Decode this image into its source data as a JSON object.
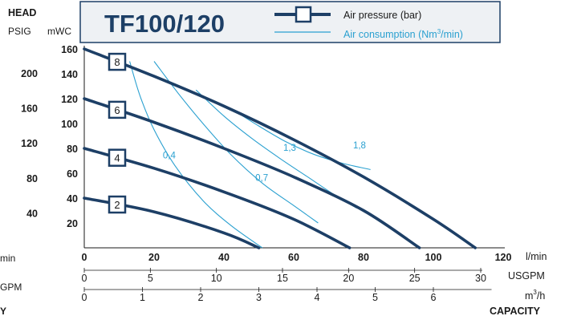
{
  "chart_data": {
    "type": "line",
    "title": "TF100/120",
    "y_title": "HEAD",
    "y_unit_psig": "PSIG",
    "y_unit_mwc": "mWC",
    "x_title": "CAPACITY",
    "unit_lmin": "l/min",
    "unit_usgpm": "USGPM",
    "unit_m3h_base": "m",
    "unit_m3h_sup": "3",
    "unit_m3h_tail": "/h",
    "legend_pressure": "Air pressure (bar)",
    "legend_consumption_base": "Air consumption (Nm",
    "legend_consumption_sup": "3",
    "legend_consumption_tail": "/min)",
    "left_fragments": [
      "min",
      "GPM",
      "Y"
    ],
    "xlim_lmin": [
      0,
      120
    ],
    "ylim_mwc": [
      0,
      160
    ],
    "lmin_ticks": [
      "0",
      "20",
      "40",
      "60",
      "80",
      "100",
      "120"
    ],
    "usgpm_ticks": [
      "0",
      "5",
      "10",
      "15",
      "20",
      "25",
      "30"
    ],
    "m3h_ticks": [
      "0",
      "1",
      "2",
      "3",
      "4",
      "5",
      "6"
    ],
    "mwc_ticks": [
      "20",
      "40",
      "60",
      "80",
      "100",
      "120",
      "140",
      "160"
    ],
    "psig_ticks": [
      "40",
      "80",
      "120",
      "160",
      "200"
    ],
    "pressure_curves": [
      {
        "name": "8",
        "x": [
          0,
          20,
          40,
          60,
          80,
          100,
          112
        ],
        "y": [
          160,
          138,
          114,
          87,
          57,
          23,
          0
        ]
      },
      {
        "name": "6",
        "x": [
          0,
          20,
          40,
          60,
          80,
          96
        ],
        "y": [
          120,
          101,
          80,
          57,
          30,
          0
        ]
      },
      {
        "name": "4",
        "x": [
          0,
          20,
          40,
          60,
          76
        ],
        "y": [
          80,
          64,
          45,
          23,
          0
        ]
      },
      {
        "name": "2",
        "x": [
          0,
          20,
          40,
          50
        ],
        "y": [
          40,
          29,
          12,
          0
        ]
      }
    ],
    "consumption_curves": [
      {
        "name": "0,4",
        "x": [
          13,
          16,
          20,
          26,
          34,
          42,
          51
        ],
        "y": [
          150,
          122,
          95,
          66,
          38,
          18,
          0
        ]
      },
      {
        "name": "0,7",
        "x": [
          20,
          27,
          34,
          42,
          51,
          60,
          67
        ],
        "y": [
          150,
          124,
          100,
          75,
          52,
          34,
          20
        ]
      },
      {
        "name": "1,3",
        "x": [
          32,
          40,
          48,
          56,
          64,
          72,
          78
        ],
        "y": [
          127,
          106,
          88,
          72,
          57,
          42,
          32
        ]
      },
      {
        "name": "1,8",
        "x": [
          42,
          50,
          58,
          66,
          74,
          82
        ],
        "y": [
          112,
          98,
          85,
          75,
          68,
          63
        ]
      }
    ],
    "consumption_labels": [
      {
        "text": "0,4",
        "x": 22.5,
        "y": 72
      },
      {
        "text": "0,7",
        "x": 49,
        "y": 54
      },
      {
        "text": "1,3",
        "x": 57,
        "y": 78
      },
      {
        "text": "1,8",
        "x": 77,
        "y": 80
      }
    ]
  }
}
